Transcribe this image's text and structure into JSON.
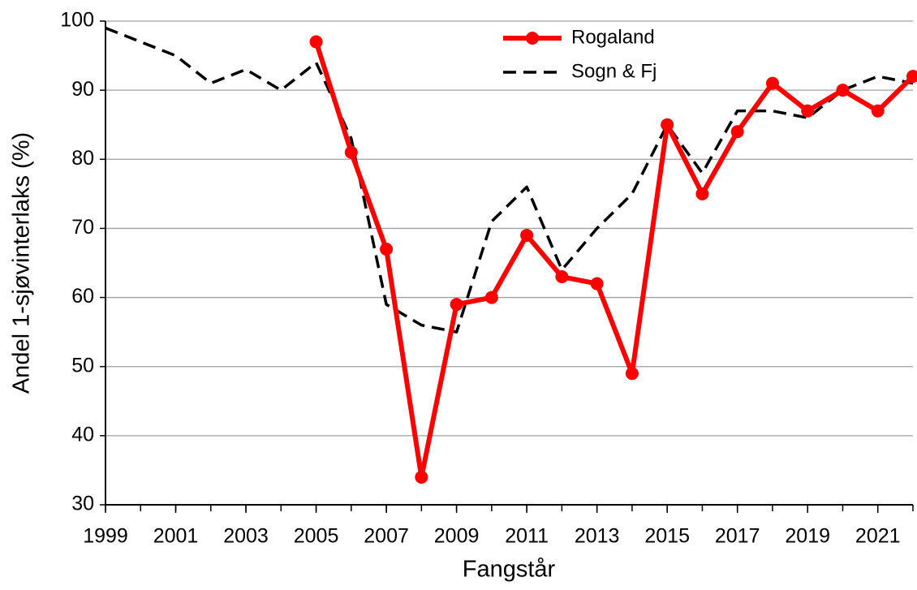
{
  "chart_data": {
    "type": "line",
    "x_label": "Fangstår",
    "y_label": "Andel 1-sjøvinterlaks (%)",
    "x": [
      1999,
      2000,
      2001,
      2002,
      2003,
      2004,
      2005,
      2006,
      2007,
      2008,
      2009,
      2010,
      2011,
      2012,
      2013,
      2014,
      2015,
      2016,
      2017,
      2018,
      2019,
      2020,
      2021,
      2022
    ],
    "series": [
      {
        "name": "Rogaland",
        "color": "#ff0000",
        "dash": false,
        "marker": "circle",
        "values": [
          null,
          null,
          null,
          null,
          null,
          null,
          97,
          81,
          67,
          34,
          59,
          60,
          69,
          63,
          62,
          49,
          85,
          75,
          84,
          91,
          87,
          90,
          87,
          92
        ]
      },
      {
        "name": "Sogn & Fj",
        "color": "#000000",
        "dash": true,
        "marker": "none",
        "values": [
          99,
          97,
          95,
          91,
          93,
          90,
          94,
          83,
          59,
          56,
          55,
          71,
          76,
          64,
          70,
          75,
          85,
          78,
          87,
          87,
          86,
          90,
          92,
          91
        ]
      }
    ],
    "xlim": [
      1999,
      2022
    ],
    "xticks": [
      1999,
      2001,
      2003,
      2005,
      2007,
      2009,
      2011,
      2013,
      2015,
      2017,
      2019,
      2021
    ],
    "ylim": [
      30,
      100
    ],
    "yticks": [
      30,
      40,
      50,
      60,
      70,
      80,
      90,
      100
    ],
    "grid": true,
    "legend": "upper center"
  }
}
